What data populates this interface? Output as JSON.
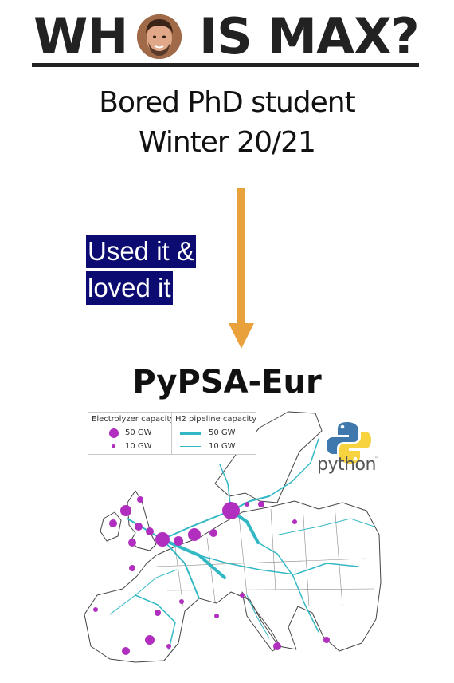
{
  "title": {
    "before_photo": "WH",
    "after_photo": " IS MAX?"
  },
  "subtitle": {
    "line1": "Bored PhD student",
    "line2": "Winter 20/21"
  },
  "annotation": {
    "line1": "Used it &",
    "line2": "loved it"
  },
  "project": {
    "name": "PyPSA-Eur"
  },
  "map_legend": {
    "electrolyzer": {
      "title": "Electrolyzer capacity",
      "large": "50 GW",
      "small": "10 GW"
    },
    "pipeline": {
      "title": "H2 pipeline capacity",
      "large": "50 GW",
      "small": "10 GW"
    }
  },
  "python_logo": {
    "word": "python",
    "tm": "™"
  },
  "colors": {
    "arrow": "#e9a23b",
    "annotation_bg": "#0b0b72",
    "electrolyzer": "#b02fbf",
    "pipeline": "#32b8c4"
  }
}
